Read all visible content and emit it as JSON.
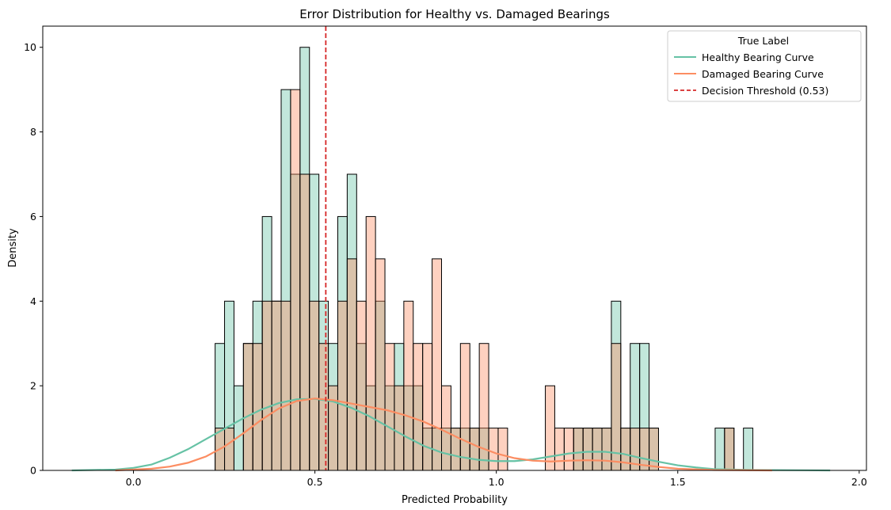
{
  "chart_data": {
    "type": "histogram",
    "title": "Error Distribution for Healthy vs. Damaged Bearings",
    "xlabel": "Predicted Probability",
    "ylabel": "Density",
    "xlim": [
      -0.25,
      2.02
    ],
    "ylim": [
      0,
      10.5
    ],
    "x_ticks": [
      0.0,
      0.5,
      1.0,
      1.5,
      2.0
    ],
    "x_tick_labels": [
      "0.0",
      "0.5",
      "1.0",
      "1.5",
      "2.0"
    ],
    "y_ticks": [
      0,
      2,
      4,
      6,
      8,
      10
    ],
    "y_tick_labels": [
      "0",
      "2",
      "4",
      "6",
      "8",
      "10"
    ],
    "grid": false,
    "legend": {
      "title": "True Label",
      "placement": "top-right",
      "entries": [
        {
          "label": "Healthy Bearing Curve",
          "style": "solid",
          "color": "#66c2a5"
        },
        {
          "label": "Damaged Bearing Curve",
          "style": "solid",
          "color": "#fc8d62"
        },
        {
          "label": "Decision Threshold (0.53)",
          "style": "dashed",
          "color": "#d62728"
        }
      ]
    },
    "threshold": 0.53,
    "bin_start": 0.225,
    "bin_width": 0.026,
    "series": [
      {
        "name": "Healthy",
        "color": "#66c2a5",
        "counts": [
          3,
          4,
          2,
          3,
          4,
          6,
          4,
          9,
          7,
          10,
          7,
          4,
          3,
          6,
          7,
          3,
          2,
          4,
          2,
          3,
          2,
          2,
          1,
          1,
          1,
          1,
          1,
          1,
          1,
          0,
          0,
          0,
          0,
          0,
          0,
          0,
          0,
          0,
          1,
          1,
          1,
          1,
          4,
          1,
          3,
          3,
          1,
          0,
          0,
          0,
          0,
          0,
          0,
          1,
          1,
          0,
          1
        ]
      },
      {
        "name": "Damaged",
        "color": "#fc8d62",
        "counts": [
          1,
          1,
          0,
          3,
          3,
          4,
          4,
          4,
          9,
          7,
          4,
          3,
          2,
          4,
          5,
          4,
          6,
          5,
          3,
          2,
          4,
          3,
          3,
          5,
          2,
          1,
          3,
          1,
          3,
          1,
          1,
          0,
          0,
          0,
          0,
          2,
          1,
          1,
          1,
          1,
          1,
          1,
          3,
          1,
          1,
          1,
          1,
          0,
          0,
          0,
          0,
          0,
          0,
          0,
          1,
          0,
          0
        ]
      }
    ],
    "curves": [
      {
        "name": "Healthy Bearing Curve",
        "color": "#66c2a5",
        "points": [
          [
            -0.17,
            0
          ],
          [
            -0.05,
            0.02
          ],
          [
            0.0,
            0.06
          ],
          [
            0.05,
            0.14
          ],
          [
            0.1,
            0.3
          ],
          [
            0.15,
            0.5
          ],
          [
            0.2,
            0.74
          ],
          [
            0.25,
            0.98
          ],
          [
            0.3,
            1.22
          ],
          [
            0.35,
            1.43
          ],
          [
            0.4,
            1.59
          ],
          [
            0.45,
            1.68
          ],
          [
            0.5,
            1.69
          ],
          [
            0.55,
            1.63
          ],
          [
            0.6,
            1.48
          ],
          [
            0.65,
            1.28
          ],
          [
            0.7,
            1.04
          ],
          [
            0.75,
            0.8
          ],
          [
            0.8,
            0.58
          ],
          [
            0.85,
            0.42
          ],
          [
            0.9,
            0.32
          ],
          [
            0.95,
            0.25
          ],
          [
            1.0,
            0.22
          ],
          [
            1.05,
            0.22
          ],
          [
            1.1,
            0.26
          ],
          [
            1.15,
            0.33
          ],
          [
            1.2,
            0.4
          ],
          [
            1.25,
            0.44
          ],
          [
            1.3,
            0.44
          ],
          [
            1.35,
            0.39
          ],
          [
            1.4,
            0.29
          ],
          [
            1.45,
            0.2
          ],
          [
            1.5,
            0.12
          ],
          [
            1.55,
            0.07
          ],
          [
            1.6,
            0.03
          ],
          [
            1.7,
            0.01
          ],
          [
            1.92,
            0
          ]
        ]
      },
      {
        "name": "Damaged Bearing Curve",
        "color": "#fc8d62",
        "points": [
          [
            -0.05,
            0
          ],
          [
            0.05,
            0.04
          ],
          [
            0.1,
            0.09
          ],
          [
            0.15,
            0.18
          ],
          [
            0.2,
            0.33
          ],
          [
            0.25,
            0.56
          ],
          [
            0.3,
            0.86
          ],
          [
            0.35,
            1.18
          ],
          [
            0.4,
            1.46
          ],
          [
            0.45,
            1.64
          ],
          [
            0.5,
            1.7
          ],
          [
            0.55,
            1.66
          ],
          [
            0.6,
            1.58
          ],
          [
            0.65,
            1.5
          ],
          [
            0.7,
            1.42
          ],
          [
            0.75,
            1.3
          ],
          [
            0.8,
            1.15
          ],
          [
            0.85,
            0.96
          ],
          [
            0.9,
            0.75
          ],
          [
            0.95,
            0.56
          ],
          [
            1.0,
            0.4
          ],
          [
            1.05,
            0.29
          ],
          [
            1.1,
            0.23
          ],
          [
            1.15,
            0.21
          ],
          [
            1.2,
            0.23
          ],
          [
            1.25,
            0.24
          ],
          [
            1.3,
            0.23
          ],
          [
            1.35,
            0.19
          ],
          [
            1.4,
            0.13
          ],
          [
            1.45,
            0.08
          ],
          [
            1.5,
            0.04
          ],
          [
            1.6,
            0.01
          ],
          [
            1.76,
            0
          ]
        ]
      }
    ]
  }
}
